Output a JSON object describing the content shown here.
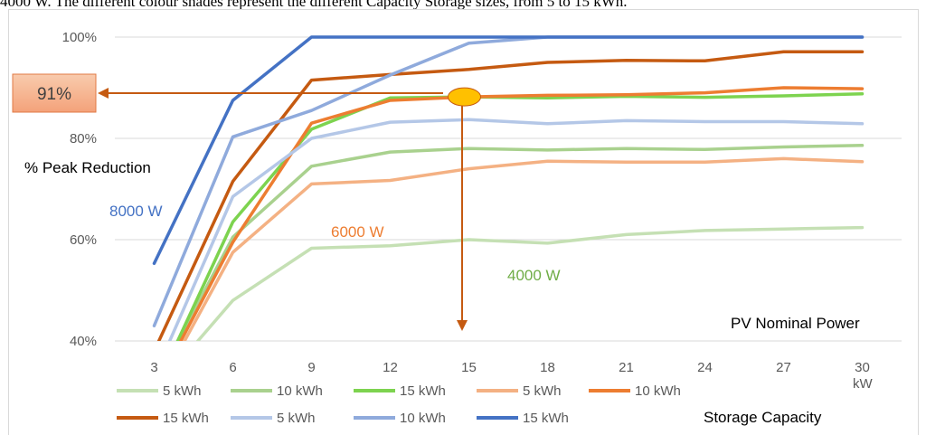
{
  "caption": "4000 W. The different colour shades represent the different Capacity Storage sizes, from 5 to 15 kWh.",
  "chart_data": {
    "type": "line",
    "x": [
      3,
      6,
      9,
      12,
      15,
      18,
      21,
      24,
      27,
      30
    ],
    "x_tick_labels": [
      "3",
      "6",
      "9",
      "12",
      "15",
      "18",
      "21",
      "24",
      "27",
      "30"
    ],
    "x_unit": "kW",
    "y_tick_labels": [
      "40%",
      "60%",
      "80%",
      "100%"
    ],
    "ylim": [
      40,
      100
    ],
    "xlabel": "PV Nominal Power",
    "ylabel": "% Peak Reduction",
    "grid": "horizontal",
    "series": [
      {
        "name": "5 kWh",
        "group": "4000 W",
        "color": "#c5e0b4",
        "values": [
          30,
          48,
          58.3,
          58.8,
          60,
          59.3,
          61,
          61.8,
          62.1,
          62.4
        ]
      },
      {
        "name": "10 kWh",
        "group": "4000 W",
        "color": "#a9d18e",
        "values": [
          31,
          60.5,
          74.5,
          77.3,
          78,
          77.7,
          78,
          77.8,
          78.3,
          78.6
        ]
      },
      {
        "name": "15 kWh",
        "group": "4000 W",
        "color": "#7dd34f",
        "values": [
          30,
          63.5,
          81.8,
          88,
          88.2,
          88,
          88.3,
          88.1,
          88.4,
          88.8
        ]
      },
      {
        "name": "5 kWh",
        "group": "6000 W",
        "color": "#f4b183",
        "values": [
          29,
          57.5,
          71,
          71.7,
          74,
          75.5,
          75.3,
          75.3,
          76,
          75.4
        ]
      },
      {
        "name": "10 kWh",
        "group": "6000 W",
        "color": "#ed7d31",
        "values": [
          30,
          59.5,
          83,
          87.5,
          88.2,
          88.5,
          88.6,
          89,
          90,
          89.8
        ]
      },
      {
        "name": "15 kWh",
        "group": "6000 W",
        "color": "#c55a11",
        "values": [
          38,
          71.5,
          91.5,
          92.6,
          93.6,
          95,
          95.4,
          95.3,
          97.1,
          97.1
        ]
      },
      {
        "name": "5 kWh",
        "group": "8000 W",
        "color": "#b4c7e7",
        "values": [
          33,
          68.5,
          80,
          83.2,
          83.7,
          82.9,
          83.5,
          83.3,
          83.3,
          82.9
        ]
      },
      {
        "name": "10 kWh",
        "group": "8000 W",
        "color": "#8faadc",
        "values": [
          43,
          80.3,
          85.5,
          92.5,
          98.8,
          100,
          100,
          100,
          100,
          100
        ]
      },
      {
        "name": "15 kWh",
        "group": "8000 W",
        "color": "#4472c4",
        "values": [
          55.3,
          87.5,
          100,
          100,
          100,
          100,
          100,
          100,
          100,
          100
        ]
      }
    ],
    "annotations": {
      "value_box": "91%",
      "group_8000": "8000 W",
      "group_6000": "6000 W",
      "group_4000": "4000 W",
      "legend_title": "Storage Capacity",
      "marker": {
        "x": 15,
        "y": 88.2
      }
    }
  }
}
